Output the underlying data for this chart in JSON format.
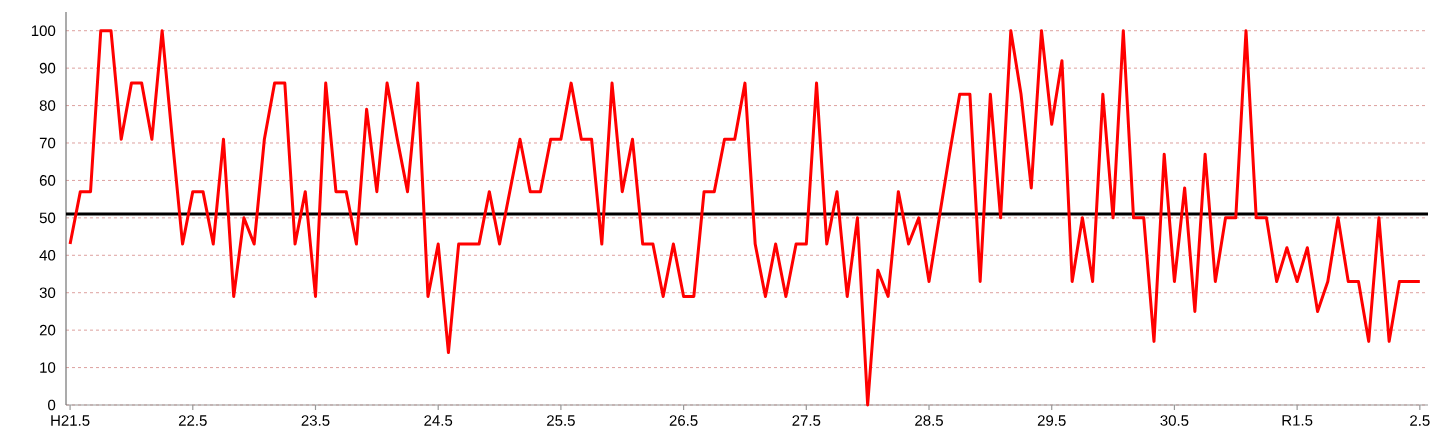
{
  "chart_data": {
    "type": "line",
    "categories": [
      "H21.5",
      null,
      null,
      null,
      null,
      null,
      null,
      null,
      null,
      null,
      null,
      null,
      "22.5",
      null,
      null,
      null,
      null,
      null,
      null,
      null,
      null,
      null,
      null,
      null,
      "23.5",
      null,
      null,
      null,
      null,
      null,
      null,
      null,
      null,
      null,
      null,
      null,
      "24.5",
      null,
      null,
      null,
      null,
      null,
      null,
      null,
      null,
      null,
      null,
      null,
      "25.5",
      null,
      null,
      null,
      null,
      null,
      null,
      null,
      null,
      null,
      null,
      null,
      "26.5",
      null,
      null,
      null,
      null,
      null,
      null,
      null,
      null,
      null,
      null,
      null,
      "27.5",
      null,
      null,
      null,
      null,
      null,
      null,
      null,
      null,
      null,
      null,
      null,
      "28.5",
      null,
      null,
      null,
      null,
      null,
      null,
      null,
      null,
      null,
      null,
      null,
      "29.5",
      null,
      null,
      null,
      null,
      null,
      null,
      null,
      null,
      null,
      null,
      null,
      "30.5",
      null,
      null,
      null,
      null,
      null,
      null,
      null,
      null,
      null,
      null,
      null,
      "R1.5",
      null,
      null,
      null,
      null,
      null,
      null,
      null,
      null,
      null,
      null,
      null,
      "2.5"
    ],
    "series": [
      {
        "color": "#ff0000",
        "values": [
          43,
          57,
          57,
          100,
          100,
          71,
          86,
          86,
          71,
          100,
          71,
          43,
          57,
          57,
          43,
          71,
          29,
          50,
          43,
          71,
          86,
          86,
          43,
          57,
          29,
          86,
          57,
          57,
          43,
          79,
          57,
          86,
          71,
          57,
          86,
          29,
          43,
          14,
          43,
          43,
          43,
          57,
          43,
          57,
          71,
          57,
          57,
          71,
          71,
          86,
          71,
          71,
          43,
          86,
          57,
          71,
          43,
          43,
          29,
          43,
          29,
          29,
          57,
          57,
          71,
          71,
          86,
          43,
          29,
          43,
          29,
          43,
          43,
          86,
          43,
          57,
          29,
          50,
          0,
          36,
          29,
          57,
          43,
          50,
          33,
          50,
          67,
          83,
          83,
          33,
          83,
          50,
          100,
          83,
          58,
          100,
          75,
          92,
          33,
          50,
          33,
          83,
          50,
          100,
          50,
          50,
          17,
          67,
          33,
          58,
          25,
          67,
          33,
          50,
          50,
          100,
          50,
          50,
          33,
          42,
          33,
          42,
          25,
          33,
          50,
          33,
          33,
          17,
          50,
          17,
          33,
          33,
          33
        ]
      }
    ],
    "ylim": [
      0,
      105
    ],
    "yticks": [
      0,
      10,
      20,
      30,
      40,
      50,
      60,
      70,
      80,
      90,
      100
    ],
    "grid": "y",
    "ref_lines": [
      {
        "axis": "y",
        "value": 51,
        "color": "#000000"
      }
    ]
  }
}
